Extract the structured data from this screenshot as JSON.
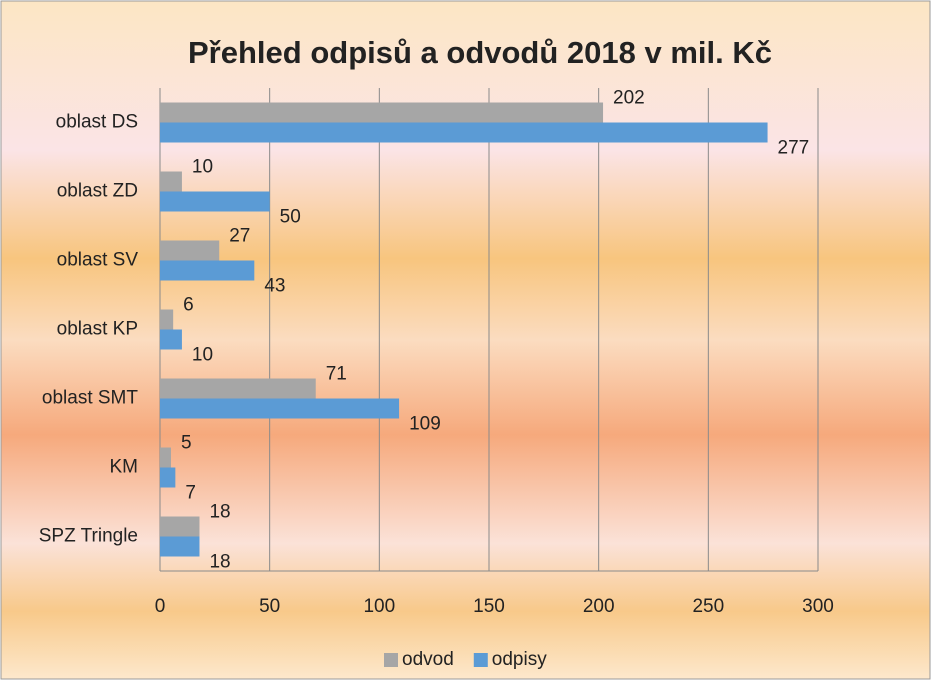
{
  "chart_data": {
    "type": "hbar",
    "title": "Přehled odpisů a odvodů 2018 v mil. Kč",
    "categories": [
      "oblast DS",
      "oblast ZD",
      "oblast SV",
      "oblast KP",
      "oblast SMT",
      "KM",
      "SPZ Tringle"
    ],
    "series": [
      {
        "name": "odvod",
        "color": "#a6a6a6",
        "values": [
          202,
          10,
          27,
          6,
          71,
          5,
          18
        ]
      },
      {
        "name": "odpisy",
        "color": "#5b9bd5",
        "values": [
          277,
          50,
          43,
          10,
          109,
          7,
          18
        ]
      }
    ],
    "xlim": [
      0,
      300
    ],
    "xticks": [
      0,
      50,
      100,
      150,
      200,
      250,
      300
    ],
    "grid": true,
    "legend": "bottom"
  }
}
